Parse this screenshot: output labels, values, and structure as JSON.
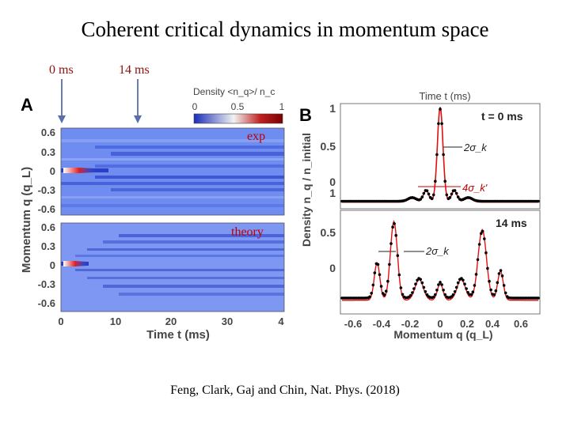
{
  "slide": {
    "title": "Coherent critical dynamics in momentum space",
    "arrow_label_0": "0 ms",
    "arrow_label_14": "14 ms",
    "label_exp": "exp",
    "label_theory": "theory",
    "citation": "Feng, Clark, Gaj and Chin, Nat. Phys. (2018)"
  },
  "colors": {
    "annotation_text": "#8b1010",
    "arrow": "#5a6fa8",
    "map_low": "#2b3fc6",
    "map_mid": "#f2f2f2",
    "map_high": "#8b0000",
    "theory_curve": "#e01010",
    "data_points": "#000000"
  },
  "panel_a": {
    "panel_label": "A",
    "colorbar": {
      "label": "Density <n_q>/ n_c",
      "ticks": [
        "0",
        "0.5",
        "1"
      ],
      "range": [
        0,
        1
      ]
    },
    "heatmap_exp": {
      "yticks": [
        "0.6",
        "0.3",
        "0",
        "-0.3",
        "-0.6"
      ]
    },
    "heatmap_theory": {
      "yticks": [
        "0.6",
        "0.3",
        "0",
        "-0.3",
        "-0.6"
      ]
    },
    "ylabel": "Momentum q (q_L)",
    "xlabel": "Time t (ms)",
    "xticks": [
      "0",
      "10",
      "20",
      "30",
      "4"
    ]
  },
  "panel_b": {
    "panel_label": "B",
    "top_axis_label": "Time t (ms)",
    "ylabel": "Density n_q / n_initial",
    "xlabel": "Momentum q (q_L)",
    "xticks": [
      "-0.6",
      "-0.4",
      "-0.2",
      "0",
      "0.2",
      "0.4",
      "0.6"
    ],
    "top": {
      "label": "t = 0 ms",
      "yticks": [
        "1",
        "0.5",
        "0"
      ],
      "annot_1": "2σ_k",
      "annot_2": "4σ_k'"
    },
    "bottom": {
      "label": "14 ms",
      "yticks": [
        "1",
        "0.5",
        "0"
      ],
      "annot_1": "2σ_k"
    }
  }
}
